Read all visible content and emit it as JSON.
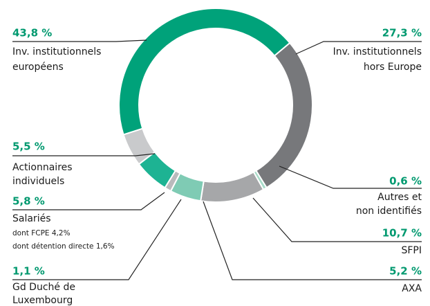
{
  "chart_data": {
    "type": "donut",
    "series": [
      {
        "name": [
          "Inv. institutionnels",
          "européens"
        ],
        "value": 43.8,
        "value_label": "43,8 %",
        "color": "#00a27a"
      },
      {
        "name": [
          "Inv. institutionnels",
          "hors Europe"
        ],
        "value": 27.3,
        "value_label": "27,3 %",
        "color": "#77787b"
      },
      {
        "name": [
          "Autres et",
          "non identifiés"
        ],
        "value": 0.6,
        "value_label": "0,6 %",
        "color": "#a8dcc9"
      },
      {
        "name": [
          "SFPI"
        ],
        "value": 10.7,
        "value_label": "10,7 %",
        "color": "#a6a7a9"
      },
      {
        "name": [
          "AXA"
        ],
        "value": 5.2,
        "value_label": "5,2 %",
        "color": "#7fcbb4"
      },
      {
        "name": [
          "Gd Duché de",
          "Luxembourg"
        ],
        "value": 1.1,
        "value_label": "1,1 %",
        "color": "#b9babc"
      },
      {
        "name": [
          "Salariés"
        ],
        "details": [
          "dont FCPE 4,2%",
          "dont détention directe 1,6%"
        ],
        "value": 5.8,
        "value_label": "5,8 %",
        "color": "#1db393"
      },
      {
        "name": [
          "Actionnaires",
          "individuels"
        ],
        "value": 5.5,
        "value_label": "5,5 %",
        "color": "#c9cacc"
      }
    ]
  }
}
